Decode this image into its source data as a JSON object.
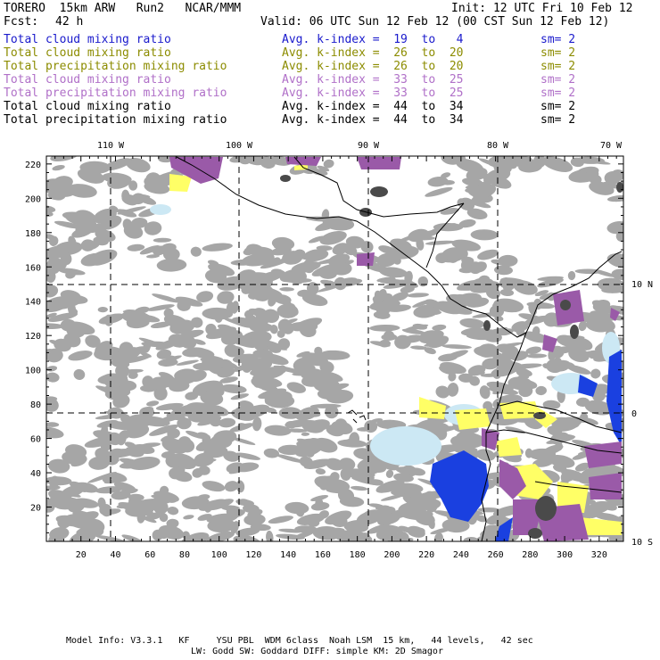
{
  "header": {
    "model": "TORERO  15km ARW   Run2   NCAR/MMM",
    "init": "Init: 12 UTC Fri 10 Feb 12",
    "fcst_label": "Fcst:",
    "fcst_value": "42 h",
    "valid": "Valid: 06 UTC Sun 12 Feb 12 (00 CST Sun 12 Feb 12)"
  },
  "legend": [
    {
      "field": "Total cloud mixing ratio",
      "kindex": "Avg. k-index =  19  to   4",
      "sm": "sm= 2",
      "color": "#1a1acc"
    },
    {
      "field": "Total cloud mixing ratio",
      "kindex": "Avg. k-index =  26  to  20",
      "sm": "sm= 2",
      "color": "#8c8c00"
    },
    {
      "field": "Total precipitation mixing ratio",
      "kindex": "Avg. k-index =  26  to  20",
      "sm": "sm= 2",
      "color": "#8c8c00"
    },
    {
      "field": "Total cloud mixing ratio",
      "kindex": "Avg. k-index =  33  to  25",
      "sm": "sm= 2",
      "color": "#b070c8"
    },
    {
      "field": "Total precipitation mixing ratio",
      "kindex": "Avg. k-index =  33  to  25",
      "sm": "sm= 2",
      "color": "#b070c8"
    },
    {
      "field": "Total cloud mixing ratio",
      "kindex": "Avg. k-index =  44  to  34",
      "sm": "sm= 2",
      "color": "#000000"
    },
    {
      "field": "Total precipitation mixing ratio",
      "kindex": "Avg. k-index =  44  to  34",
      "sm": "sm= 2",
      "color": "#000000"
    }
  ],
  "map": {
    "lon_labels": [
      "110 W",
      "100 W",
      "90 W",
      "80 W",
      "70 W"
    ],
    "lat_labels": [
      "10 N",
      "0",
      "10 S"
    ],
    "x_ticks": [
      "20",
      "40",
      "60",
      "80",
      "100",
      "120",
      "140",
      "160",
      "180",
      "200",
      "220",
      "240",
      "260",
      "280",
      "300",
      "320"
    ],
    "y_ticks": [
      "20",
      "40",
      "60",
      "80",
      "100",
      "120",
      "140",
      "160",
      "180",
      "200",
      "220"
    ],
    "colors": {
      "gray": "#a6a6a6",
      "dark_gray": "#4a4a4a",
      "yellow": "#ffff66",
      "purple": "#9a5aa8",
      "blue": "#1a40e0",
      "light_blue": "#cce8f4"
    }
  },
  "footer": {
    "line1": "Model Info: V3.3.1   KF     YSU PBL  WDM 6class  Noah LSM  15 km,   44 levels,   42 sec",
    "line2": "LW: Godd SW: Goddard DIFF: simple KM: 2D Smagor"
  }
}
